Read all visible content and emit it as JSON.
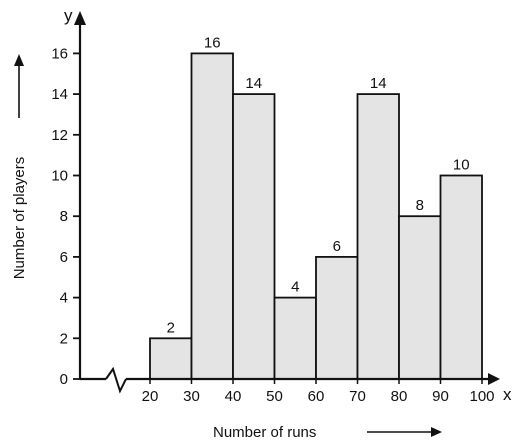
{
  "chart_data": {
    "type": "bar",
    "categories": [
      "20-30",
      "30-40",
      "40-50",
      "50-60",
      "60-70",
      "70-80",
      "80-90",
      "90-100"
    ],
    "bins": [
      [
        20,
        30
      ],
      [
        30,
        40
      ],
      [
        40,
        50
      ],
      [
        50,
        60
      ],
      [
        60,
        70
      ],
      [
        70,
        80
      ],
      [
        80,
        90
      ],
      [
        90,
        100
      ]
    ],
    "values": [
      2,
      16,
      14,
      4,
      6,
      14,
      8,
      10
    ],
    "data_labels": [
      "2",
      "16",
      "14",
      "4",
      "6",
      "14",
      "8",
      "10"
    ],
    "x_ticks": [
      "20",
      "30",
      "40",
      "50",
      "60",
      "70",
      "80",
      "90",
      "100"
    ],
    "y_ticks": [
      "0",
      "2",
      "4",
      "6",
      "8",
      "10",
      "12",
      "14",
      "16"
    ],
    "xlabel": "Number of runs",
    "ylabel": "Number of players",
    "x_axis_letter": "x",
    "y_axis_letter": "y",
    "ylim": [
      0,
      17
    ],
    "xlim": [
      20,
      100
    ],
    "x_axis_break": true,
    "grid": false,
    "bar_fill": "#e4e4e4",
    "stroke_color": "#111111"
  }
}
